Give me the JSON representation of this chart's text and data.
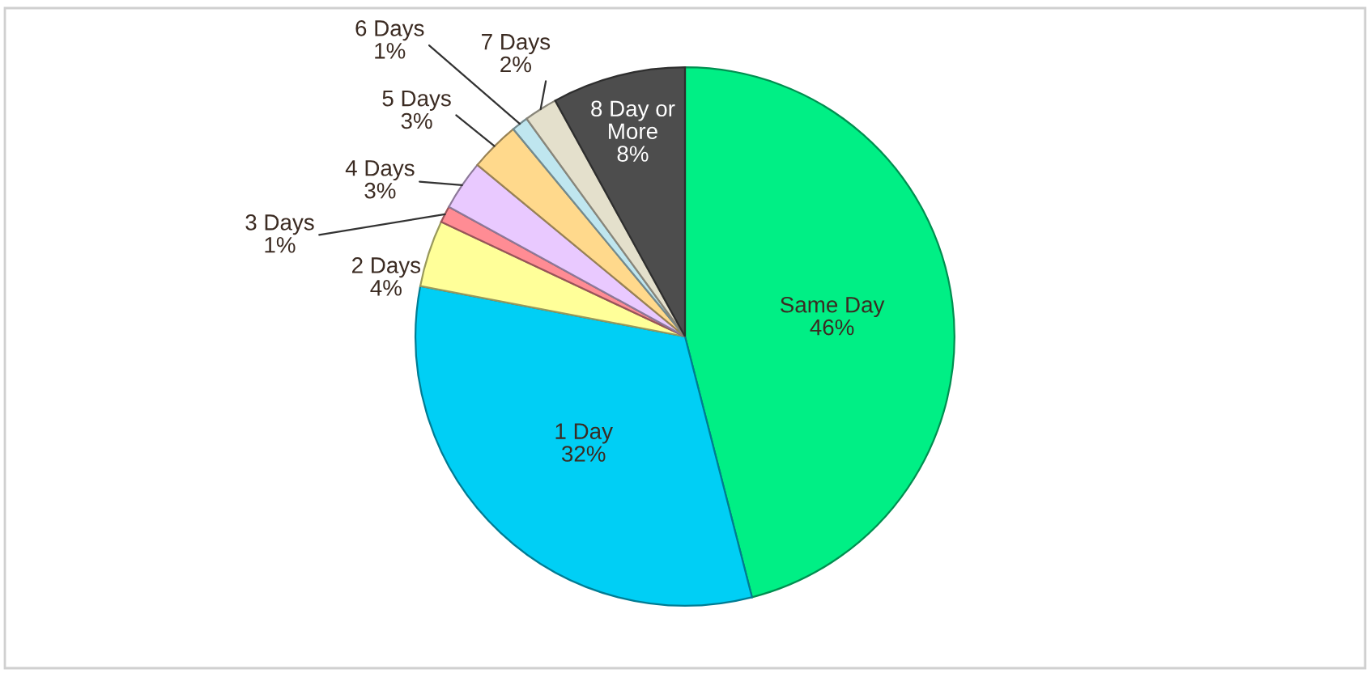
{
  "chart_data": {
    "type": "pie",
    "categories": [
      "Same Day",
      "1 Day",
      "2 Days",
      "3 Days",
      "4 Days",
      "5 Days",
      "6 Days",
      "7 Days",
      "8 Day or More"
    ],
    "values": [
      46,
      32,
      4,
      1,
      3,
      3,
      1,
      2,
      8
    ],
    "value_labels": [
      "46%",
      "32%",
      "4%",
      "1%",
      "3%",
      "3%",
      "1%",
      "2%",
      "8%"
    ],
    "colors": [
      "#00ef85",
      "#00cff5",
      "#ffff99",
      "#ff8c94",
      "#e9c9ff",
      "#ffd98c",
      "#bfe6ef",
      "#e4e0cc",
      "#4d4d4d"
    ],
    "legend": false
  }
}
